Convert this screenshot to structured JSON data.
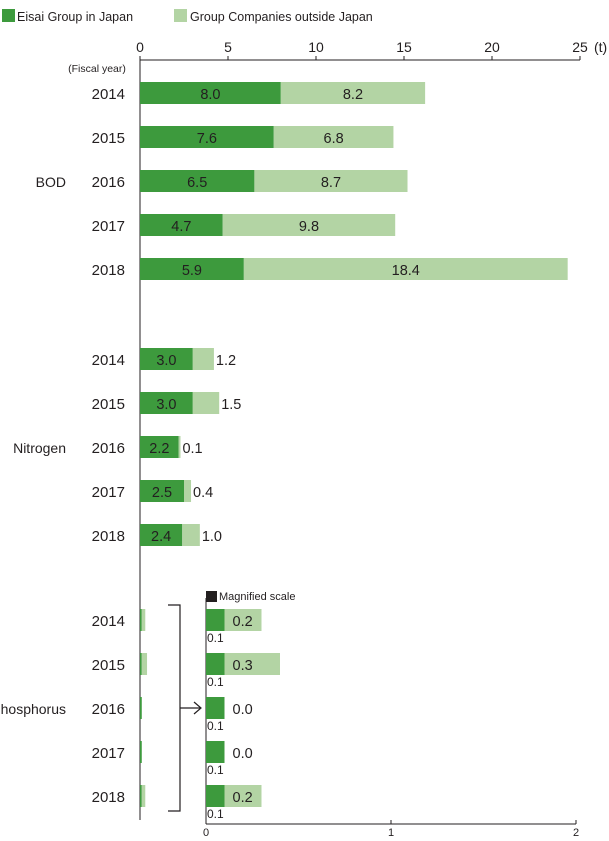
{
  "colors": {
    "japan": "#3d9a3d",
    "outside": "#b3d4a4",
    "axis": "#231f20",
    "text": "#231f20",
    "magnified_marker": "#231f20"
  },
  "legend": [
    {
      "name": "Eisai Group in Japan"
    },
    {
      "name": "Group Companies outside Japan"
    }
  ],
  "chart_data": {
    "type": "bar",
    "orientation": "horizontal",
    "stacked": true,
    "unit": "(t)",
    "year_header": "(Fiscal year)",
    "xlim": [
      0,
      25
    ],
    "xticks": [
      "0",
      "5",
      "10",
      "15",
      "20",
      "25"
    ],
    "legend_placement": "top-left",
    "grid": false,
    "groups": [
      {
        "name": "BOD",
        "years": [
          "2014",
          "2015",
          "2016",
          "2017",
          "2018"
        ],
        "japan": [
          8.0,
          7.6,
          6.5,
          4.7,
          5.9
        ],
        "outside": [
          8.2,
          6.8,
          8.7,
          9.8,
          18.4
        ],
        "japan_labels": [
          "8.0",
          "7.6",
          "6.5",
          "4.7",
          "5.9"
        ],
        "outside_labels": [
          "8.2",
          "6.8",
          "8.7",
          "9.8",
          "18.4"
        ]
      },
      {
        "name": "Nitrogen",
        "years": [
          "2014",
          "2015",
          "2016",
          "2017",
          "2018"
        ],
        "japan": [
          3.0,
          3.0,
          2.2,
          2.5,
          2.4
        ],
        "outside": [
          1.2,
          1.5,
          0.1,
          0.4,
          1.0
        ],
        "japan_labels": [
          "3.0",
          "3.0",
          "2.2",
          "2.5",
          "2.4"
        ],
        "outside_labels": [
          "1.2",
          "1.5",
          "0.1",
          "0.4",
          "1.0"
        ]
      },
      {
        "name": "Phosphorus",
        "years": [
          "2014",
          "2015",
          "2016",
          "2017",
          "2018"
        ],
        "japan": [
          0.1,
          0.1,
          0.1,
          0.1,
          0.1
        ],
        "outside": [
          0.2,
          0.3,
          0.0,
          0.0,
          0.2
        ]
      }
    ],
    "magnified": {
      "label": "Magnified scale",
      "xlim": [
        0,
        2
      ],
      "xticks": [
        "0",
        "1",
        "2"
      ],
      "japan_labels": [
        "0.1",
        "0.1",
        "0.1",
        "0.1",
        "0.1"
      ],
      "outside_labels": [
        "0.2",
        "0.3",
        "0.0",
        "0.0",
        "0.2"
      ]
    }
  }
}
